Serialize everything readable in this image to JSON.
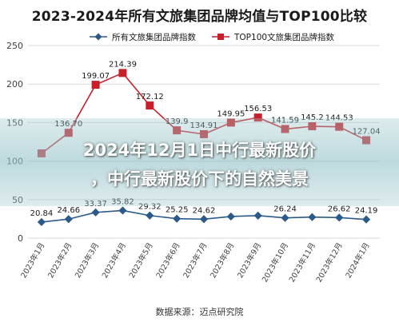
{
  "source_text": "数据来源：迈点研究院",
  "overlay": {
    "line1": "2024年12月1日中行最新股价",
    "line2": "，中行最新股价下的自然美景"
  },
  "colors": {
    "series1": "#2b5a8a",
    "series2": "#c8202a",
    "grid": "#d9d9d9",
    "axis_text": "#404040"
  },
  "chart_data": {
    "type": "line",
    "title": "2023-2024年所有文旅集团品牌均值与TOP100比较",
    "xlabel": "",
    "ylabel": "",
    "ylim": [
      0,
      250
    ],
    "yticks": [
      0,
      50,
      100,
      150,
      200,
      250
    ],
    "grid": "horizontal",
    "legend": "top",
    "categories": [
      "2023年1月",
      "2023年2月",
      "2023年3月",
      "2023年4月",
      "2023年5月",
      "2023年6月",
      "2023年7月",
      "2023年8月",
      "2023年9月",
      "2023年10月",
      "2023年11月",
      "2023年12月",
      "2024年1月"
    ],
    "series": [
      {
        "name": "所有文旅集团品牌指数",
        "marker": "diamond",
        "values": [
          20.84,
          24.66,
          33.37,
          35.82,
          29.32,
          25.25,
          24.62,
          28.07,
          29.19,
          26.24,
          27.28,
          26.62,
          24.19
        ],
        "labels": [
          "20.84",
          "24.66",
          "33.37",
          "35.82",
          "29.32",
          "25.25",
          "24.62",
          "",
          "",
          "26.24",
          "",
          "26.62",
          "24.19"
        ]
      },
      {
        "name": "TOP100文旅集团品牌指数",
        "marker": "square",
        "values": [
          110.0,
          136.7,
          199.07,
          214.39,
          172.12,
          139.9,
          134.91,
          149.95,
          156.53,
          141.59,
          145.2,
          144.53,
          127.04
        ],
        "labels": [
          "",
          "136.70",
          "199.07",
          "214.39",
          "172.12",
          "139.9",
          "134.91",
          "149.95",
          "156.53",
          "141.59",
          "145.2",
          "144.53",
          "127.04"
        ]
      }
    ]
  }
}
